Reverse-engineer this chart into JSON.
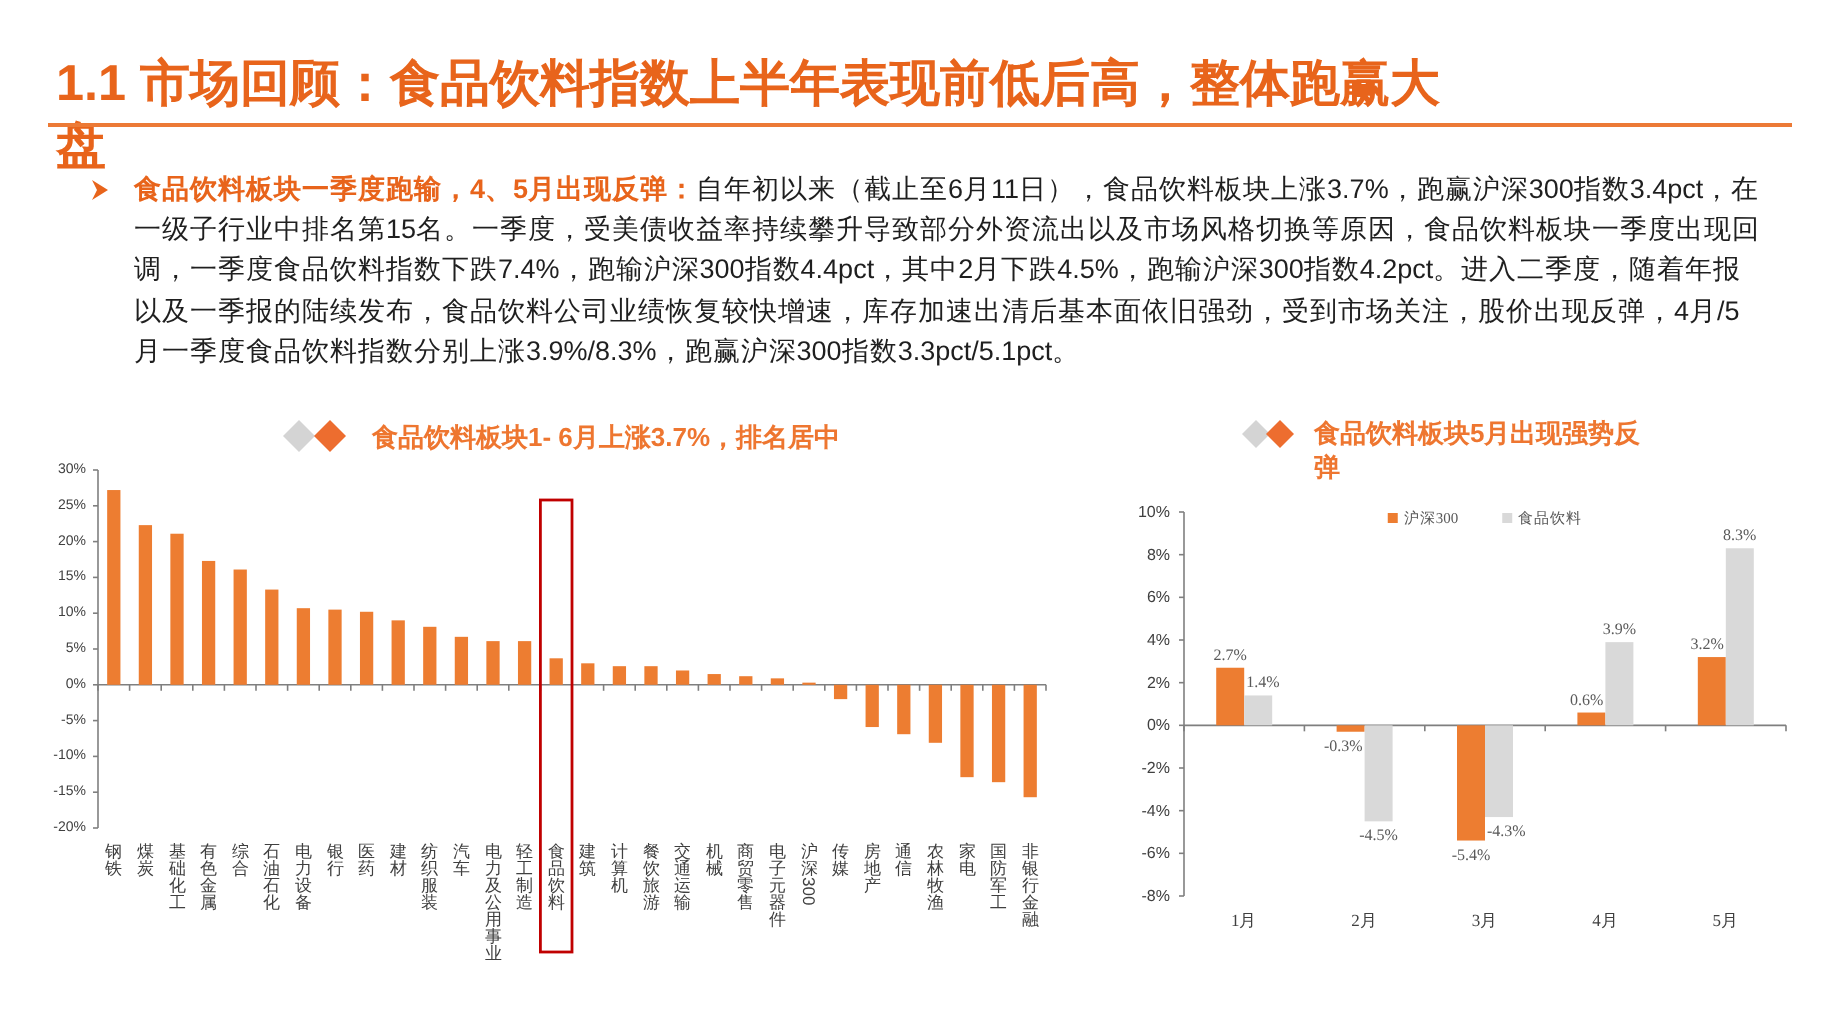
{
  "chart_data": [
    {
      "type": "other",
      "title": "1.1 市场回顾：食品饮料指数上半年表现前低后高，整体跑赢大盘",
      "annotations": [
        "食品饮料板块一季度跑输，4、5月出现反弹：",
        "自年初以来（截止至6月11日），食品饮料板块上涨3.7%，跑赢沪深300指数3.4pct，在一级子行业中排名第15名。一季度，受美债收益率持续攀升导致部分外资流出以及市场风格切换等原因，食品饮料板块一季度出现回调，一季度食品饮料指数下跌7.4%，跑输沪深300指数4.4pct，其中2月下跌4.5%，跑输沪深300指数4.2pct。进入二季度，随着年报以及一季报的陆续发布，食品饮料公司业绩恢复较快增速，库存加速出清后基本面依旧强劲，受到市场关注，股价出现反弹，4月/5月一季度食品饮料指数分别上涨3.9%/8.3%，跑赢沪深300指数3.3pct/5.1pct。"
      ]
    },
    {
      "type": "bar",
      "title": "食品饮料板块1- 6月上涨3.7%，排名居中",
      "categories": [
        "钢铁",
        "煤炭",
        "基础化工",
        "有色金属",
        "综合",
        "石油石化",
        "电力设备",
        "银行",
        "医药",
        "建材",
        "纺织服装",
        "汽车",
        "电力及公用事业",
        "轻工制造",
        "食品饮料",
        "建筑",
        "计算机",
        "餐饮旅游",
        "交通运输",
        "机械",
        "商贸零售",
        "电子元器件",
        "沪深300",
        "传媒",
        "房地产",
        "通信",
        "农林牧渔",
        "家电",
        "国防军工",
        "非银行金融"
      ],
      "values": [
        27.2,
        22.3,
        21.1,
        17.3,
        16.1,
        13.3,
        10.7,
        10.5,
        10.2,
        9.0,
        8.1,
        6.7,
        6.1,
        6.1,
        3.7,
        3.0,
        2.6,
        2.6,
        2.0,
        1.5,
        1.2,
        0.9,
        0.3,
        -2.0,
        -5.9,
        -6.9,
        -8.1,
        -12.9,
        -13.6,
        -15.7
      ],
      "color": "#ed7d31",
      "ylim": [
        -20,
        30
      ],
      "yticks": [
        {
          "value": -20,
          "label": "-20%"
        },
        {
          "value": -15,
          "label": "-15%"
        },
        {
          "value": -10,
          "label": "-10%"
        },
        {
          "value": -5,
          "label": "-5%"
        },
        {
          "value": 0,
          "label": "0%"
        },
        {
          "value": 5,
          "label": "5%"
        },
        {
          "value": 10,
          "label": "10%"
        },
        {
          "value": 15,
          "label": "15%"
        },
        {
          "value": 20,
          "label": "20%"
        },
        {
          "value": 25,
          "label": "25%"
        },
        {
          "value": 30,
          "label": "30%"
        }
      ]
    },
    {
      "type": "bar",
      "title": "食品饮料板块5月出现强势反弹",
      "categories": [
        "1月",
        "2月",
        "3月",
        "4月",
        "5月"
      ],
      "series": [
        {
          "name": "沪深300",
          "color": "#ed7d31",
          "values": [
            2.7,
            -0.3,
            -5.4,
            0.6,
            3.2
          ],
          "value_labels": [
            "2.7%",
            "-0.3%",
            "-5.4%",
            "0.6%",
            "3.2%"
          ]
        },
        {
          "name": "食品饮料",
          "color": "#d9d9d9",
          "values": [
            1.4,
            -4.5,
            -4.3,
            3.9,
            8.3
          ],
          "value_labels": [
            "1.4%",
            "-4.5%",
            "-4.3%",
            "3.9%",
            "8.3%"
          ]
        }
      ],
      "ylim": [
        -8,
        10
      ],
      "yticks": [
        {
          "value": -8,
          "label": "-8%"
        },
        {
          "value": -6,
          "label": "-6%"
        },
        {
          "value": -4,
          "label": "-4%"
        },
        {
          "value": -2,
          "label": "-2%"
        },
        {
          "value": 0,
          "label": "0%"
        },
        {
          "value": 2,
          "label": "2%"
        },
        {
          "value": 4,
          "label": "4%"
        },
        {
          "value": 6,
          "label": "6%"
        },
        {
          "value": 8,
          "label": "8%"
        },
        {
          "value": 10,
          "label": "10%"
        }
      ],
      "legend": "top"
    }
  ]
}
